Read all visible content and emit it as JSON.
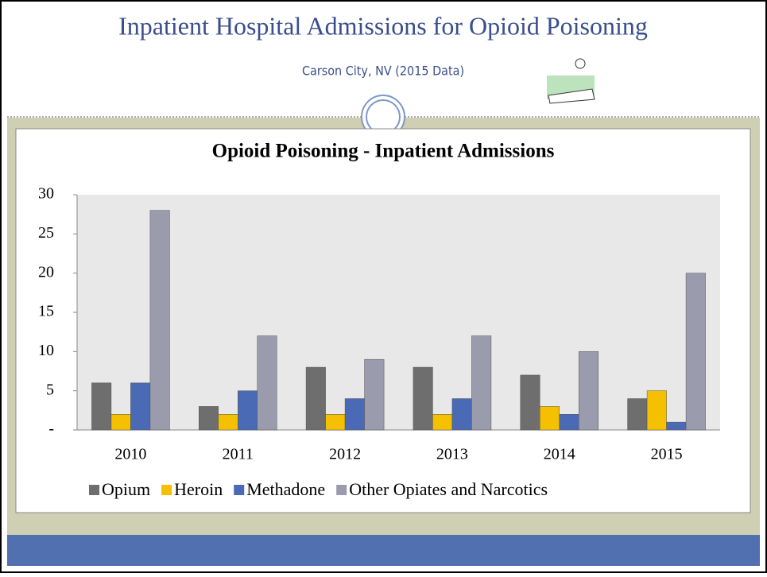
{
  "slide": {
    "title": "Inpatient Hospital Admissions for Opioid Poisoning",
    "subtitle": "Carson City, NV (2015 Data)"
  },
  "chart_data": {
    "type": "bar",
    "title": "Opioid Poisoning - Inpatient Admissions",
    "categories": [
      "2010",
      "2011",
      "2012",
      "2013",
      "2014",
      "2015"
    ],
    "series": [
      {
        "name": "Opium",
        "color": "#6e6e6e",
        "values": [
          6,
          3,
          8,
          8,
          7,
          4
        ]
      },
      {
        "name": "Heroin",
        "color": "#f5c000",
        "values": [
          2,
          2,
          2,
          2,
          3,
          5
        ]
      },
      {
        "name": "Methadone",
        "color": "#4a6ab5",
        "values": [
          6,
          5,
          4,
          4,
          2,
          1
        ]
      },
      {
        "name": "Other Opiates and Narcotics",
        "color": "#9b9bae",
        "values": [
          28,
          12,
          9,
          12,
          10,
          20
        ]
      }
    ],
    "ylim": [
      0,
      30
    ],
    "yticks": [
      {
        "value": 0,
        "label": "-"
      },
      5,
      10,
      15,
      20,
      25,
      30
    ],
    "legend": "bottom"
  }
}
